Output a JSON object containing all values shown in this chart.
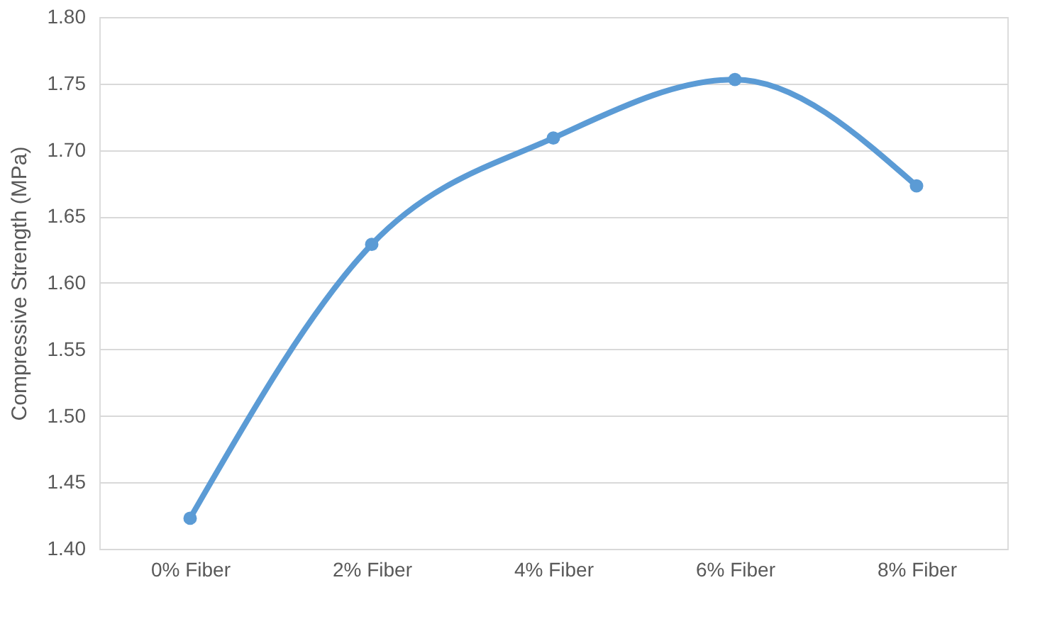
{
  "chart_data": {
    "type": "line",
    "ylabel": "Compressive Strength (MPa)",
    "categories": [
      "0% Fiber",
      "2% Fiber",
      "4% Fiber",
      "6% Fiber",
      "8% Fiber"
    ],
    "series": [
      {
        "color": "#5b9bd5",
        "values": [
          1.423,
          1.629,
          1.709,
          1.753,
          1.673
        ]
      }
    ],
    "ylim": [
      1.4,
      1.8
    ],
    "yticks": [
      {
        "value": 1.4,
        "label": "1.40"
      },
      {
        "value": 1.45,
        "label": "1.45"
      },
      {
        "value": 1.5,
        "label": "1.50"
      },
      {
        "value": 1.55,
        "label": "1.55"
      },
      {
        "value": 1.6,
        "label": "1.60"
      },
      {
        "value": 1.65,
        "label": "1.65"
      },
      {
        "value": 1.7,
        "label": "1.70"
      },
      {
        "value": 1.75,
        "label": "1.75"
      },
      {
        "value": 1.8,
        "label": "1.80"
      }
    ],
    "grid": "y",
    "marker": "circle",
    "line_style": "solid"
  }
}
